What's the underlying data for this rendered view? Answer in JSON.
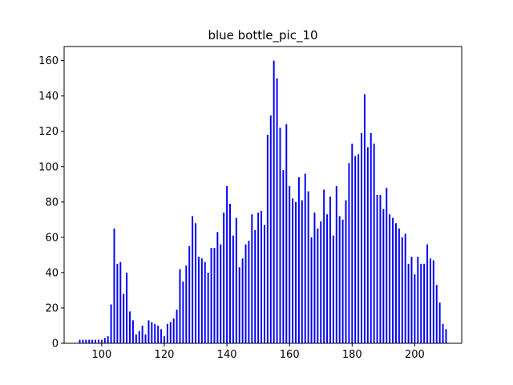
{
  "chart_data": {
    "type": "bar",
    "title": "blue bottle_pic_10",
    "xlabel": "",
    "ylabel": "",
    "bar_color": "#0000ff",
    "xlim": [
      88,
      215
    ],
    "ylim": [
      0,
      168
    ],
    "xticks": [
      100,
      120,
      140,
      160,
      180,
      200
    ],
    "yticks": [
      0,
      20,
      40,
      60,
      80,
      100,
      120,
      140,
      160
    ],
    "grid": false,
    "x": [
      93,
      94,
      95,
      96,
      97,
      98,
      99,
      100,
      101,
      102,
      103,
      104,
      105,
      106,
      107,
      108,
      109,
      110,
      111,
      112,
      113,
      114,
      115,
      116,
      117,
      118,
      119,
      120,
      121,
      122,
      123,
      124,
      125,
      126,
      127,
      128,
      129,
      130,
      131,
      132,
      133,
      134,
      135,
      136,
      137,
      138,
      139,
      140,
      141,
      142,
      143,
      144,
      145,
      146,
      147,
      148,
      149,
      150,
      151,
      152,
      153,
      154,
      155,
      156,
      157,
      158,
      159,
      160,
      161,
      162,
      163,
      164,
      165,
      166,
      167,
      168,
      169,
      170,
      171,
      172,
      173,
      174,
      175,
      176,
      177,
      178,
      179,
      180,
      181,
      182,
      183,
      184,
      185,
      186,
      187,
      188,
      189,
      190,
      191,
      192,
      193,
      194,
      195,
      196,
      197,
      198,
      199,
      200,
      201,
      202,
      203,
      204,
      205,
      206,
      207,
      208,
      209,
      210
    ],
    "values": [
      2,
      2,
      2,
      2,
      2,
      2,
      2,
      2,
      3,
      4,
      22,
      65,
      45,
      46,
      28,
      40,
      18,
      13,
      5,
      7,
      10,
      5,
      13,
      12,
      11,
      10,
      8,
      4,
      11,
      12,
      14,
      19,
      42,
      35,
      44,
      55,
      72,
      68,
      49,
      48,
      46,
      40,
      54,
      54,
      63,
      56,
      74,
      89,
      79,
      61,
      71,
      43,
      48,
      56,
      58,
      73,
      64,
      74,
      75,
      67,
      118,
      129,
      160,
      150,
      122,
      98,
      124,
      89,
      82,
      80,
      94,
      81,
      96,
      86,
      60,
      74,
      65,
      69,
      87,
      73,
      83,
      61,
      89,
      72,
      70,
      81,
      102,
      113,
      106,
      107,
      119,
      141,
      111,
      119,
      113,
      84,
      84,
      76,
      88,
      73,
      71,
      68,
      65,
      60,
      62,
      45,
      49,
      39,
      49,
      45,
      45,
      56,
      48,
      47,
      33,
      23,
      11,
      8
    ]
  }
}
